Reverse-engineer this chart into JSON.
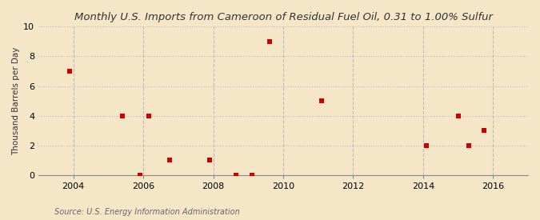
{
  "title": "Monthly U.S. Imports from Cameroon of Residual Fuel Oil, 0.31 to 1.00% Sulfur",
  "ylabel": "Thousand Barrels per Day",
  "source": "Source: U.S. Energy Information Administration",
  "background_color": "#f5e6c8",
  "plot_background_color": "#f5e6c8",
  "marker_color": "#cc0000",
  "marker_shape": "s",
  "marker_size": 4,
  "xlim": [
    2003.0,
    2017.0
  ],
  "ylim": [
    0,
    10
  ],
  "yticks": [
    0,
    2,
    4,
    6,
    8,
    10
  ],
  "xticks": [
    2004,
    2006,
    2008,
    2010,
    2012,
    2014,
    2016
  ],
  "x_data": [
    2003.9,
    2005.4,
    2005.9,
    2006.15,
    2006.75,
    2007.9,
    2008.65,
    2009.1,
    2009.6,
    2011.1,
    2014.1,
    2015.0,
    2015.3,
    2015.75
  ],
  "y_data": [
    7.0,
    4.0,
    0.0,
    4.0,
    1.0,
    1.0,
    0.0,
    0.0,
    9.0,
    5.0,
    2.0,
    4.0,
    2.0,
    3.0
  ],
  "grid_color": "#bbbbbb",
  "grid_linestyle": ":",
  "grid_linewidth": 0.8,
  "title_fontsize": 9.5,
  "ylabel_fontsize": 7.5,
  "tick_fontsize": 8,
  "source_fontsize": 7
}
